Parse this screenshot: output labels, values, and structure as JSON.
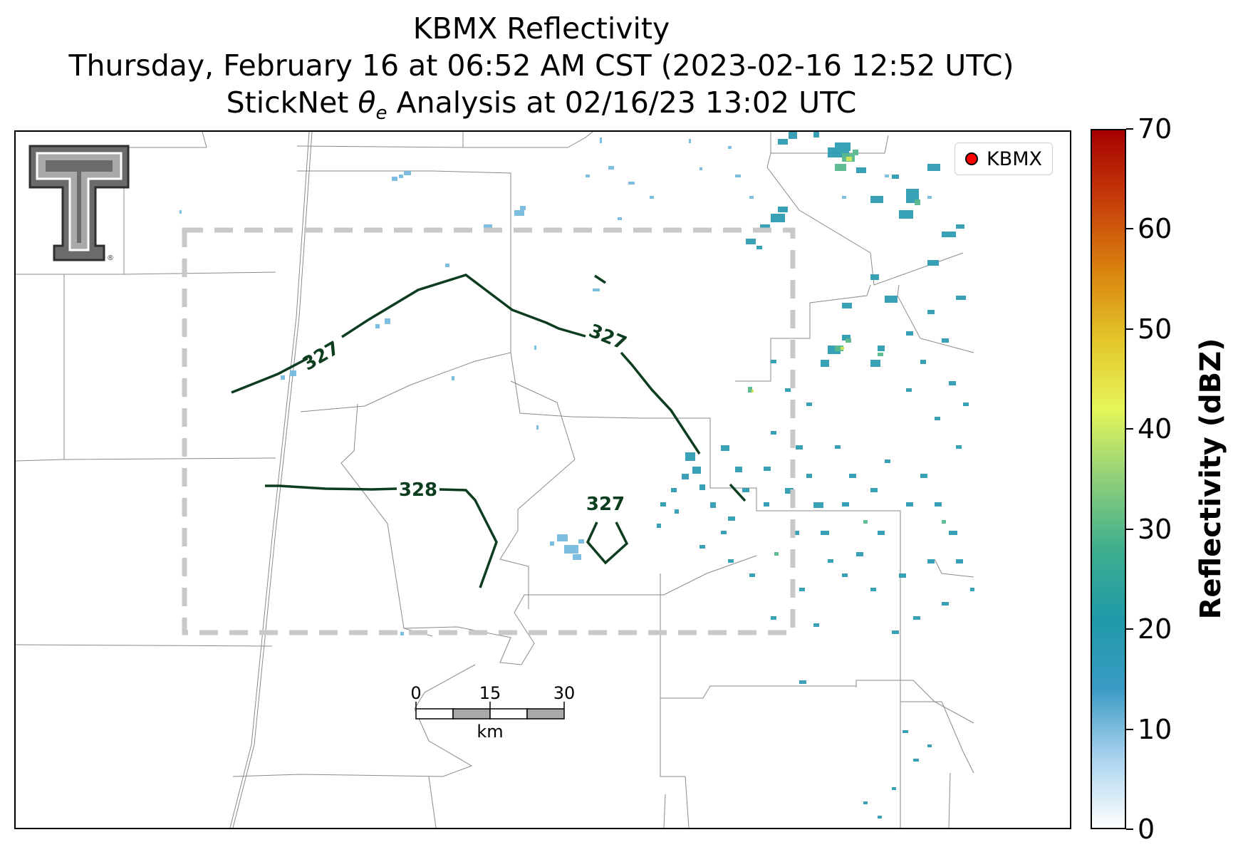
{
  "title": {
    "line1": "KBMX Reflectivity",
    "line2": "Thursday, February 16 at 06:52 AM CST (2023-02-16 12:52 UTC)",
    "line3_prefix": "StickNet ",
    "line3_symbol": "θ",
    "line3_subscript": "e",
    "line3_suffix": " Analysis at 02/16/23 13:02 UTC"
  },
  "legend": {
    "label": "KBMX",
    "marker_color": "#ff0000"
  },
  "colorbar": {
    "title": "Reflectivity (dBZ)",
    "min": 0,
    "max": 70,
    "ticks": [
      "0",
      "10",
      "20",
      "30",
      "40",
      "50",
      "60",
      "70"
    ],
    "colors": [
      "#ffffff",
      "#a9d3ee",
      "#3a9bc4",
      "#1f9aa8",
      "#3fae8e",
      "#8fd07a",
      "#e6f55a",
      "#e3c52a",
      "#d9820f",
      "#c63d0a",
      "#a50000"
    ]
  },
  "contours": {
    "color": "#0d3d1f",
    "labels": [
      "327",
      "327",
      "328",
      "327"
    ]
  },
  "scale_bar": {
    "ticks": [
      "0",
      "15",
      "30"
    ],
    "unit": "km"
  },
  "logo": {
    "name": "Texas Tech Double T",
    "mark": "®"
  },
  "analysis_box": {
    "style": "dashed",
    "color": "#c8c8c8"
  }
}
